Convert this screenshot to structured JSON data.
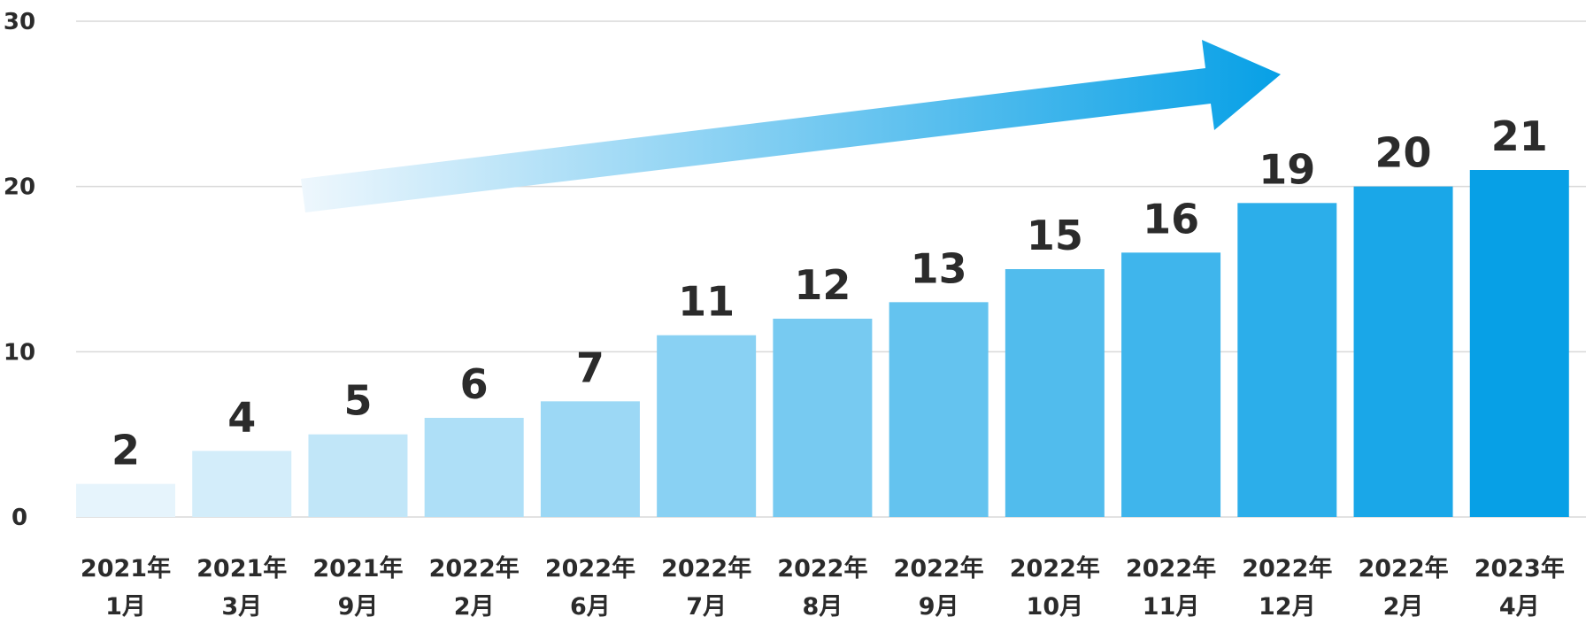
{
  "chart_data": {
    "type": "bar",
    "categories": [
      [
        "2021年",
        "1月"
      ],
      [
        "2021年",
        "3月"
      ],
      [
        "2021年",
        "9月"
      ],
      [
        "2022年",
        "2月"
      ],
      [
        "2022年",
        "6月"
      ],
      [
        "2022年",
        "7月"
      ],
      [
        "2022年",
        "8月"
      ],
      [
        "2022年",
        "9月"
      ],
      [
        "2022年",
        "10月"
      ],
      [
        "2022年",
        "11月"
      ],
      [
        "2022年",
        "12月"
      ],
      [
        "2022年",
        "2月"
      ],
      [
        "2023年",
        "4月"
      ]
    ],
    "values": [
      2,
      4,
      5,
      6,
      7,
      11,
      12,
      13,
      15,
      16,
      19,
      20,
      21
    ],
    "data_labels": [
      "2",
      "4",
      "5",
      "6",
      "7",
      "11",
      "12",
      "13",
      "15",
      "16",
      "19",
      "20",
      "21"
    ],
    "ylim": [
      0,
      30
    ],
    "yticks": [
      0,
      10,
      20,
      30
    ],
    "grid": true,
    "title": "",
    "xlabel": "",
    "ylabel": "",
    "colors": {
      "bar_start": "#e6f4fc",
      "bar_end": "#07a0e6",
      "arrow_start": "#eef7fd",
      "arrow_end": "#07a0e6",
      "text": "#2b2b2b",
      "grid": "#d9d9d9"
    },
    "annotation": "upward-trend-arrow"
  }
}
